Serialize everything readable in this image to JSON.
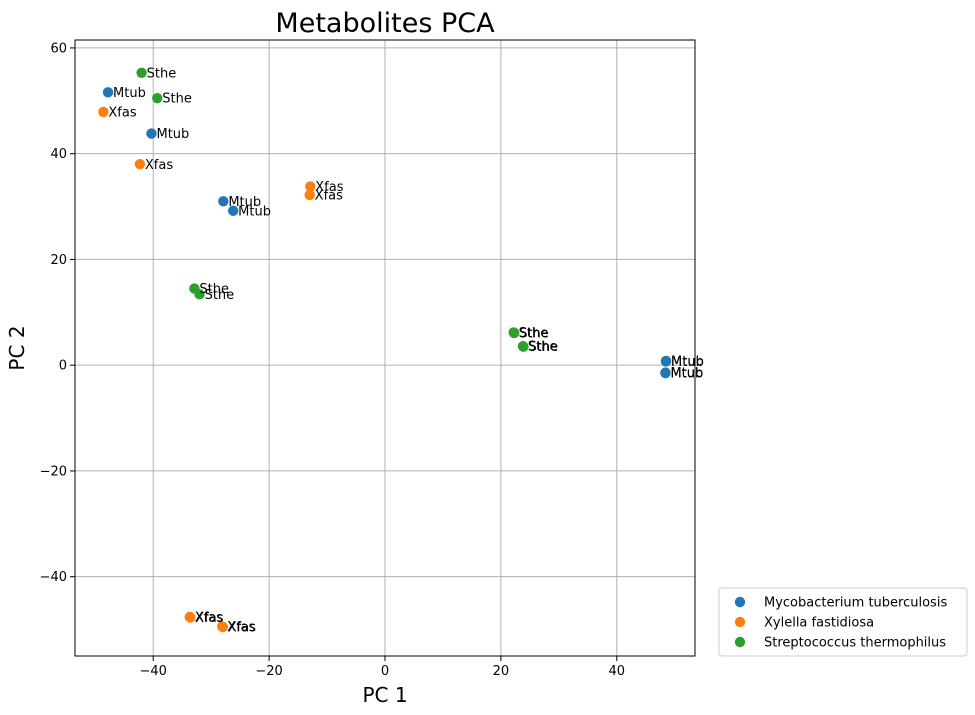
{
  "chart_data": {
    "type": "scatter",
    "title": "Metabolites PCA",
    "xlabel": "PC 1",
    "ylabel": "PC 2",
    "xlim": [
      -53.5,
      53.5
    ],
    "ylim": [
      -55,
      61.5
    ],
    "xticks": [
      -40,
      -20,
      0,
      20,
      40
    ],
    "yticks": [
      -40,
      -20,
      0,
      20,
      40,
      60
    ],
    "grid": true,
    "legend_position": "outside-bottom-right",
    "series": [
      {
        "name": "Mycobacterium tuberculosis",
        "color": "#1f77b4",
        "point_label": "Mtub",
        "points": [
          {
            "x": -47.8,
            "y": 51.6
          },
          {
            "x": -40.3,
            "y": 43.8
          },
          {
            "x": -27.9,
            "y": 31.0
          },
          {
            "x": -26.2,
            "y": 29.2
          },
          {
            "x": 48.5,
            "y": 0.8
          },
          {
            "x": 48.5,
            "y": 0.7
          },
          {
            "x": 48.4,
            "y": -1.4
          },
          {
            "x": 48.4,
            "y": -1.5
          }
        ]
      },
      {
        "name": "Xylella fastidiosa",
        "color": "#ff7f0e",
        "point_label": "Xfas",
        "points": [
          {
            "x": -48.6,
            "y": 47.9
          },
          {
            "x": -42.3,
            "y": 38.0
          },
          {
            "x": -12.9,
            "y": 33.8
          },
          {
            "x": -13.0,
            "y": 32.2
          },
          {
            "x": -33.7,
            "y": -47.6
          },
          {
            "x": -33.6,
            "y": -47.7
          },
          {
            "x": -28.1,
            "y": -49.4
          },
          {
            "x": -28.0,
            "y": -49.5
          }
        ]
      },
      {
        "name": "Streptococcus thermophilus",
        "color": "#2ca02c",
        "point_label": "Sthe",
        "points": [
          {
            "x": -42.0,
            "y": 55.3
          },
          {
            "x": -39.3,
            "y": 50.5
          },
          {
            "x": -32.9,
            "y": 14.5
          },
          {
            "x": -32.0,
            "y": 13.4
          },
          {
            "x": 22.2,
            "y": 6.2
          },
          {
            "x": 22.3,
            "y": 6.1
          },
          {
            "x": 23.8,
            "y": 3.6
          },
          {
            "x": 23.9,
            "y": 3.5
          }
        ]
      }
    ]
  }
}
